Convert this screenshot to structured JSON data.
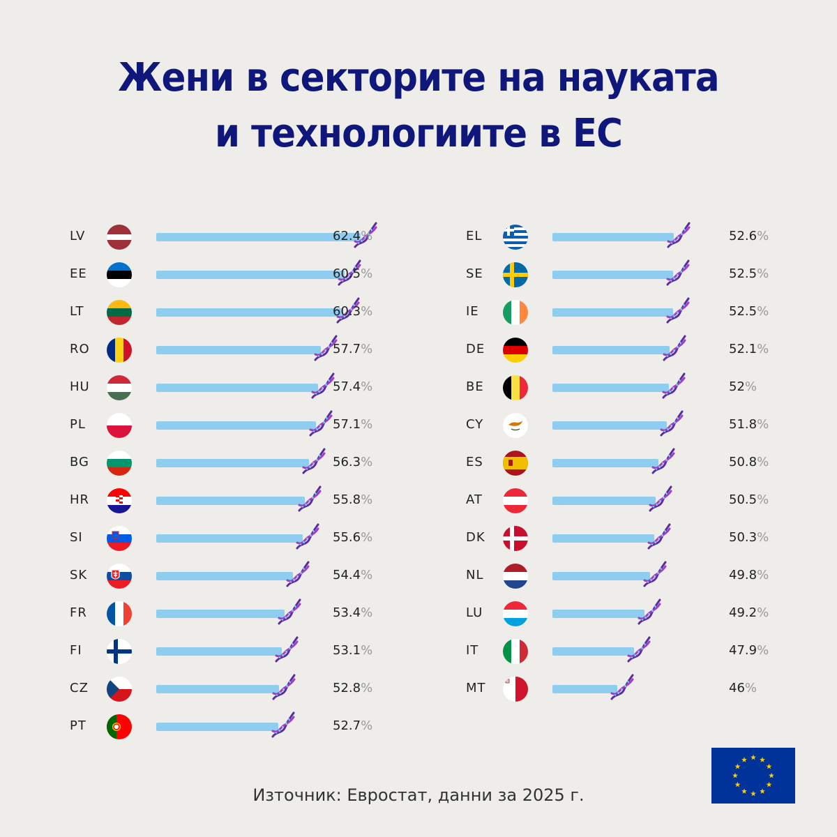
{
  "title_line1": "Жени в секторите на науката",
  "title_line2": "и технологиите в ЕС",
  "source": "Източник: Евростат, данни за 2025 г.",
  "colors": {
    "bar": "#8fcdf0",
    "title": "#10177a",
    "background": "#eeedea"
  },
  "chart_data": {
    "type": "bar",
    "unit": "%",
    "categories": [
      "LV",
      "EE",
      "LT",
      "RO",
      "HU",
      "PL",
      "BG",
      "HR",
      "SI",
      "SK",
      "FR",
      "FI",
      "CZ",
      "PT",
      "EL",
      "SE",
      "IE",
      "DE",
      "BE",
      "CY",
      "ES",
      "AT",
      "DK",
      "NL",
      "LU",
      "IT",
      "MT"
    ],
    "values": [
      62.4,
      60.5,
      60.3,
      57.7,
      57.4,
      57.1,
      56.3,
      55.8,
      55.6,
      54.4,
      53.4,
      53.1,
      52.8,
      52.7,
      52.6,
      52.5,
      52.5,
      52.1,
      52,
      51.8,
      50.8,
      50.5,
      50.3,
      49.8,
      49.2,
      47.9,
      46
    ],
    "labels": [
      "62.4",
      "60.5",
      "60.3",
      "57.7",
      "57.4",
      "57.1",
      "56.3",
      "55.8",
      "55.6",
      "54.4",
      "53.4",
      "53.1",
      "52.8",
      "52.7",
      "52.6",
      "52.5",
      "52.5",
      "52.1",
      "52",
      "51.8",
      "50.8",
      "50.5",
      "50.3",
      "49.8",
      "49.2",
      "47.9",
      "46"
    ],
    "percent_sign": "%",
    "columns": 2,
    "rows_per_column": 14
  }
}
